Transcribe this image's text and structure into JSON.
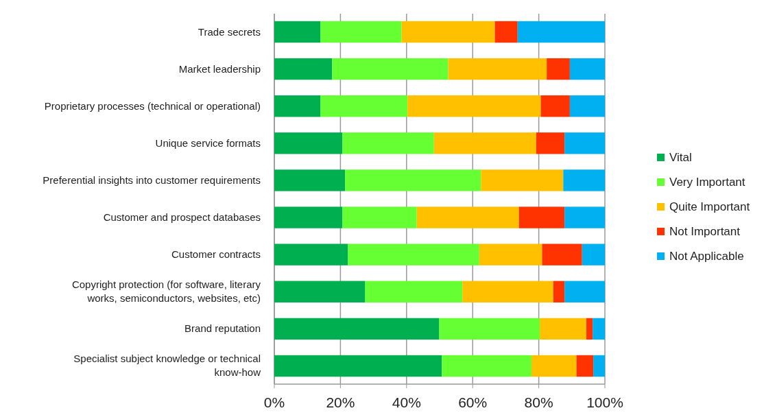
{
  "chart_data": {
    "type": "bar",
    "orientation": "horizontal",
    "stacked": true,
    "categories": [
      "Trade secrets",
      "Market leadership",
      "Proprietary processes (technical or operational)",
      "Unique service formats",
      "Preferential insights into customer requirements",
      "Customer and prospect databases",
      "Customer contracts",
      "Copyright protection (for software, literary works, semiconductors, websites, etc)",
      "Brand reputation",
      "Specialist subject knowledge or technical know-how"
    ],
    "series": [
      {
        "name": "Vital",
        "color": "#00b050",
        "values": [
          14.0,
          17.5,
          14.0,
          20.6,
          21.4,
          20.6,
          22.3,
          27.5,
          49.9,
          50.7
        ]
      },
      {
        "name": "Very Important",
        "color": "#66ff33",
        "values": [
          24.5,
          35.1,
          26.3,
          27.7,
          41.1,
          22.5,
          39.7,
          29.4,
          30.4,
          27.1
        ]
      },
      {
        "name": "Quite Important",
        "color": "#ffc000",
        "values": [
          28.2,
          29.8,
          40.3,
          30.9,
          24.9,
          30.9,
          19.0,
          27.5,
          14.1,
          13.6
        ]
      },
      {
        "name": "Not Important",
        "color": "#ff3300",
        "values": [
          6.9,
          7.0,
          8.8,
          8.6,
          0,
          13.8,
          12.1,
          3.4,
          1.9,
          5.1
        ]
      },
      {
        "name": "Not Applicable",
        "color": "#00b0f0",
        "values": [
          26.4,
          10.6,
          10.6,
          12.2,
          12.6,
          12.2,
          6.9,
          12.2,
          3.7,
          3.5
        ]
      }
    ],
    "xlim": [
      0,
      100
    ],
    "xticks": [
      {
        "value": 0,
        "label": "0%"
      },
      {
        "value": 20,
        "label": "20%"
      },
      {
        "value": 40,
        "label": "40%"
      },
      {
        "value": 60,
        "label": "60%"
      },
      {
        "value": 80,
        "label": "80%"
      },
      {
        "value": 100,
        "label": "100%"
      }
    ],
    "grid": "x",
    "legend": "right"
  }
}
